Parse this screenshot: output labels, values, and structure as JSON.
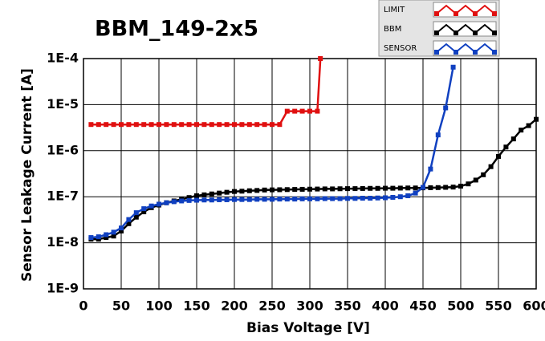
{
  "chart_data": {
    "type": "line",
    "title": "BBM_149-2x5",
    "x_label": "Bias Voltage [V]",
    "y_label": "Sensor Leakage Current [A]",
    "log_y": true,
    "grid": true,
    "legend": "top-right",
    "xlim": [
      0,
      600
    ],
    "xticks": [
      0,
      50,
      100,
      150,
      200,
      250,
      300,
      350,
      400,
      450,
      500,
      550,
      600
    ],
    "ylim": [
      1e-09,
      0.0001
    ],
    "yticks": [
      {
        "value": 1e-09,
        "label": "1E-9"
      },
      {
        "value": 1e-08,
        "label": "1E-8"
      },
      {
        "value": 1e-07,
        "label": "1E-7"
      },
      {
        "value": 1e-06,
        "label": "1E-6"
      },
      {
        "value": 1e-05,
        "label": "1E-5"
      },
      {
        "value": 0.0001,
        "label": "1E-4"
      }
    ],
    "series": [
      {
        "name": "LIMIT",
        "color": "#e01010",
        "x": [
          10,
          20,
          30,
          40,
          50,
          60,
          70,
          80,
          90,
          100,
          110,
          120,
          130,
          140,
          150,
          160,
          170,
          180,
          190,
          200,
          210,
          220,
          230,
          240,
          250,
          260,
          270,
          280,
          290,
          300,
          310,
          314
        ],
        "values": [
          3.7e-06,
          3.7e-06,
          3.7e-06,
          3.7e-06,
          3.7e-06,
          3.7e-06,
          3.7e-06,
          3.7e-06,
          3.7e-06,
          3.7e-06,
          3.7e-06,
          3.7e-06,
          3.7e-06,
          3.7e-06,
          3.7e-06,
          3.7e-06,
          3.7e-06,
          3.7e-06,
          3.7e-06,
          3.7e-06,
          3.7e-06,
          3.7e-06,
          3.7e-06,
          3.7e-06,
          3.7e-06,
          3.7e-06,
          7.2e-06,
          7.2e-06,
          7.2e-06,
          7.2e-06,
          7.2e-06,
          0.0001
        ]
      },
      {
        "name": "BBM",
        "color": "#000000",
        "x": [
          10,
          20,
          30,
          40,
          50,
          60,
          70,
          80,
          90,
          100,
          110,
          120,
          130,
          140,
          150,
          160,
          170,
          180,
          190,
          200,
          210,
          220,
          230,
          240,
          250,
          260,
          270,
          280,
          290,
          300,
          310,
          320,
          330,
          340,
          350,
          360,
          370,
          380,
          390,
          400,
          410,
          420,
          430,
          440,
          450,
          460,
          470,
          480,
          490,
          500,
          510,
          520,
          530,
          540,
          550,
          560,
          570,
          580,
          590,
          600
        ],
        "values": [
          1.2e-08,
          1.2e-08,
          1.3e-08,
          1.4e-08,
          1.8e-08,
          2.6e-08,
          3.6e-08,
          4.7e-08,
          5.8e-08,
          6.6e-08,
          7.4e-08,
          8.1e-08,
          8.8e-08,
          9.6e-08,
          1.05e-07,
          1.1e-07,
          1.15e-07,
          1.2e-07,
          1.25e-07,
          1.3e-07,
          1.32e-07,
          1.35e-07,
          1.37e-07,
          1.4e-07,
          1.41e-07,
          1.42e-07,
          1.43e-07,
          1.44e-07,
          1.45e-07,
          1.46e-07,
          1.47e-07,
          1.48e-07,
          1.48e-07,
          1.49e-07,
          1.5e-07,
          1.5e-07,
          1.51e-07,
          1.52e-07,
          1.52e-07,
          1.53e-07,
          1.53e-07,
          1.54e-07,
          1.55e-07,
          1.55e-07,
          1.56e-07,
          1.57e-07,
          1.58e-07,
          1.6e-07,
          1.62e-07,
          1.7e-07,
          1.9e-07,
          2.3e-07,
          3e-07,
          4.5e-07,
          7.5e-07,
          1.2e-06,
          1.8e-06,
          2.8e-06,
          3.5e-06,
          4.8e-06
        ]
      },
      {
        "name": "SENSOR",
        "color": "#1040c0",
        "x": [
          10,
          20,
          30,
          40,
          50,
          60,
          70,
          80,
          90,
          100,
          110,
          120,
          130,
          140,
          150,
          160,
          170,
          180,
          190,
          200,
          210,
          220,
          230,
          240,
          250,
          260,
          270,
          280,
          290,
          300,
          310,
          320,
          330,
          340,
          350,
          360,
          370,
          380,
          390,
          400,
          410,
          420,
          430,
          440,
          450,
          460,
          470,
          480,
          490
        ],
        "values": [
          1.3e-08,
          1.35e-08,
          1.5e-08,
          1.7e-08,
          2.1e-08,
          3.2e-08,
          4.5e-08,
          5.5e-08,
          6.3e-08,
          6.9e-08,
          7.4e-08,
          7.8e-08,
          8.1e-08,
          8.3e-08,
          8.4e-08,
          8.5e-08,
          8.5e-08,
          8.6e-08,
          8.6e-08,
          8.7e-08,
          8.7e-08,
          8.7e-08,
          8.8e-08,
          8.8e-08,
          8.8e-08,
          8.9e-08,
          8.9e-08,
          8.9e-08,
          9e-08,
          9e-08,
          9e-08,
          9.1e-08,
          9.1e-08,
          9.1e-08,
          9.2e-08,
          9.2e-08,
          9.3e-08,
          9.3e-08,
          9.4e-08,
          9.5e-08,
          9.7e-08,
          1e-07,
          1.05e-07,
          1.2e-07,
          1.6e-07,
          4e-07,
          2.2e-06,
          8.5e-06,
          6.5e-05
        ]
      }
    ]
  }
}
